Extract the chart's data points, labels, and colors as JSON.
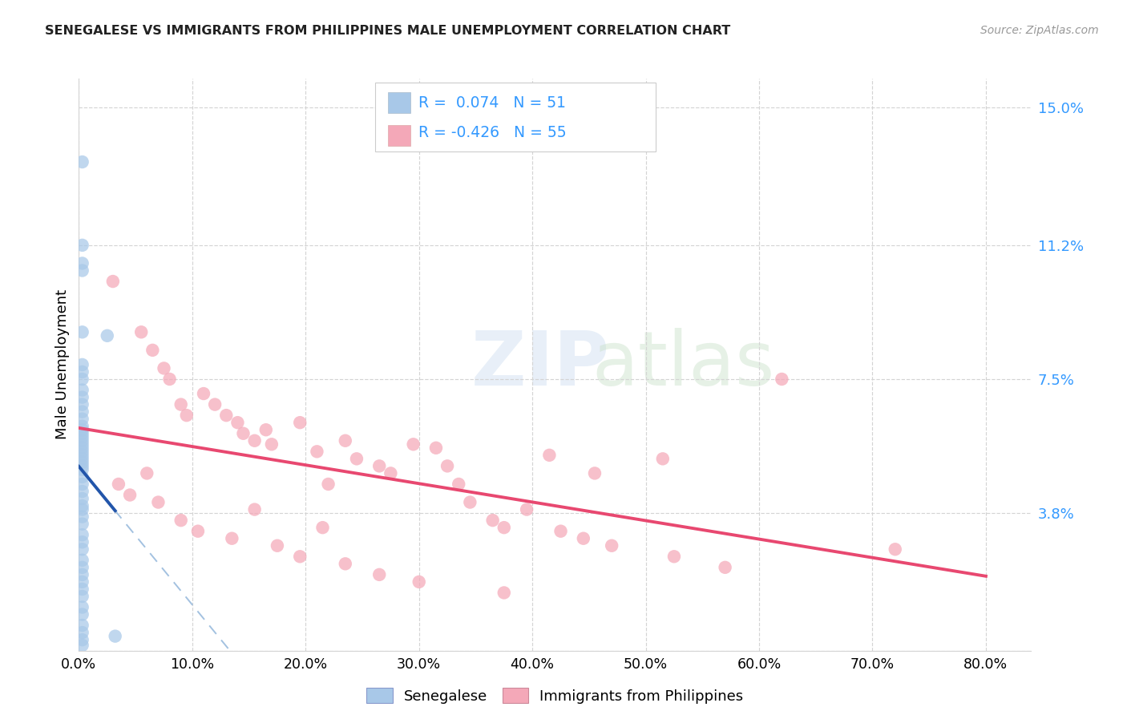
{
  "title": "SENEGALESE VS IMMIGRANTS FROM PHILIPPINES MALE UNEMPLOYMENT CORRELATION CHART",
  "source": "Source: ZipAtlas.com",
  "ylabel": "Male Unemployment",
  "ylim": [
    0,
    15.8
  ],
  "xlim": [
    0,
    84
  ],
  "blue_R": 0.074,
  "blue_N": 51,
  "pink_R": -0.426,
  "pink_N": 55,
  "legend_label_blue": "Senegalese",
  "legend_label_pink": "Immigrants from Philippines",
  "blue_color": "#a8c8e8",
  "pink_color": "#f4a8b8",
  "blue_line_color": "#2255aa",
  "pink_line_color": "#e84870",
  "blue_dash_color": "#99bbdd",
  "yticks": [
    0,
    3.8,
    7.5,
    11.2,
    15.0
  ],
  "ytick_labels": [
    "",
    "3.8%",
    "7.5%",
    "11.2%",
    "15.0%"
  ],
  "xticks": [
    0,
    10,
    20,
    30,
    40,
    50,
    60,
    70,
    80
  ],
  "xtick_labels": [
    "0.0%",
    "10.0%",
    "20.0%",
    "30.0%",
    "40.0%",
    "50.0%",
    "60.0%",
    "70.0%",
    "80.0%"
  ],
  "blue_scatter": [
    [
      0.3,
      13.5
    ],
    [
      0.3,
      11.2
    ],
    [
      0.3,
      10.7
    ],
    [
      0.3,
      10.5
    ],
    [
      0.3,
      8.8
    ],
    [
      0.3,
      7.9
    ],
    [
      0.3,
      7.7
    ],
    [
      0.3,
      7.5
    ],
    [
      0.3,
      7.2
    ],
    [
      0.3,
      7.0
    ],
    [
      0.3,
      6.8
    ],
    [
      0.3,
      6.6
    ],
    [
      0.3,
      6.4
    ],
    [
      0.3,
      6.2
    ],
    [
      0.3,
      6.0
    ],
    [
      0.3,
      5.9
    ],
    [
      0.3,
      5.8
    ],
    [
      0.3,
      5.7
    ],
    [
      0.3,
      5.6
    ],
    [
      0.3,
      5.5
    ],
    [
      0.3,
      5.4
    ],
    [
      0.3,
      5.3
    ],
    [
      0.3,
      5.2
    ],
    [
      0.3,
      5.1
    ],
    [
      0.3,
      5.0
    ],
    [
      0.3,
      4.8
    ],
    [
      0.3,
      4.6
    ],
    [
      0.3,
      4.4
    ],
    [
      0.3,
      4.2
    ],
    [
      0.3,
      3.9
    ],
    [
      0.3,
      3.7
    ],
    [
      0.3,
      3.5
    ],
    [
      0.3,
      3.2
    ],
    [
      0.3,
      3.0
    ],
    [
      0.3,
      2.8
    ],
    [
      0.3,
      2.5
    ],
    [
      0.3,
      2.3
    ],
    [
      0.3,
      2.1
    ],
    [
      0.3,
      1.9
    ],
    [
      0.3,
      1.7
    ],
    [
      0.3,
      1.5
    ],
    [
      0.3,
      1.2
    ],
    [
      0.3,
      1.0
    ],
    [
      0.3,
      0.7
    ],
    [
      0.3,
      0.5
    ],
    [
      2.5,
      8.7
    ],
    [
      3.2,
      0.4
    ],
    [
      0.3,
      0.3
    ],
    [
      0.3,
      0.15
    ],
    [
      0.3,
      4.0
    ],
    [
      0.3,
      6.1
    ]
  ],
  "pink_scatter": [
    [
      3.0,
      10.2
    ],
    [
      5.5,
      8.8
    ],
    [
      6.5,
      8.3
    ],
    [
      7.5,
      7.8
    ],
    [
      8.0,
      7.5
    ],
    [
      9.0,
      6.8
    ],
    [
      9.5,
      6.5
    ],
    [
      11.0,
      7.1
    ],
    [
      12.0,
      6.8
    ],
    [
      13.0,
      6.5
    ],
    [
      14.0,
      6.3
    ],
    [
      14.5,
      6.0
    ],
    [
      15.5,
      5.8
    ],
    [
      16.5,
      6.1
    ],
    [
      17.0,
      5.7
    ],
    [
      19.5,
      6.3
    ],
    [
      21.0,
      5.5
    ],
    [
      22.0,
      4.6
    ],
    [
      23.5,
      5.8
    ],
    [
      24.5,
      5.3
    ],
    [
      26.5,
      5.1
    ],
    [
      27.5,
      4.9
    ],
    [
      29.5,
      5.7
    ],
    [
      31.5,
      5.6
    ],
    [
      32.5,
      5.1
    ],
    [
      33.5,
      4.6
    ],
    [
      34.5,
      4.1
    ],
    [
      36.5,
      3.6
    ],
    [
      37.5,
      3.4
    ],
    [
      39.5,
      3.9
    ],
    [
      41.5,
      5.4
    ],
    [
      42.5,
      3.3
    ],
    [
      44.5,
      3.1
    ],
    [
      45.5,
      4.9
    ],
    [
      47.0,
      2.9
    ],
    [
      51.5,
      5.3
    ],
    [
      52.5,
      2.6
    ],
    [
      57.0,
      2.3
    ],
    [
      62.0,
      7.5
    ],
    [
      72.0,
      2.8
    ],
    [
      3.5,
      4.6
    ],
    [
      4.5,
      4.3
    ],
    [
      6.0,
      4.9
    ],
    [
      7.0,
      4.1
    ],
    [
      9.0,
      3.6
    ],
    [
      10.5,
      3.3
    ],
    [
      13.5,
      3.1
    ],
    [
      15.5,
      3.9
    ],
    [
      17.5,
      2.9
    ],
    [
      19.5,
      2.6
    ],
    [
      21.5,
      3.4
    ],
    [
      23.5,
      2.4
    ],
    [
      26.5,
      2.1
    ],
    [
      30.0,
      1.9
    ],
    [
      37.5,
      1.6
    ]
  ],
  "background_color": "#ffffff",
  "grid_color": "#d4d4d4",
  "right_tick_color": "#3399ff",
  "legend_text_blue_color": "#3399ff",
  "legend_text_pink_color": "#3399ff"
}
